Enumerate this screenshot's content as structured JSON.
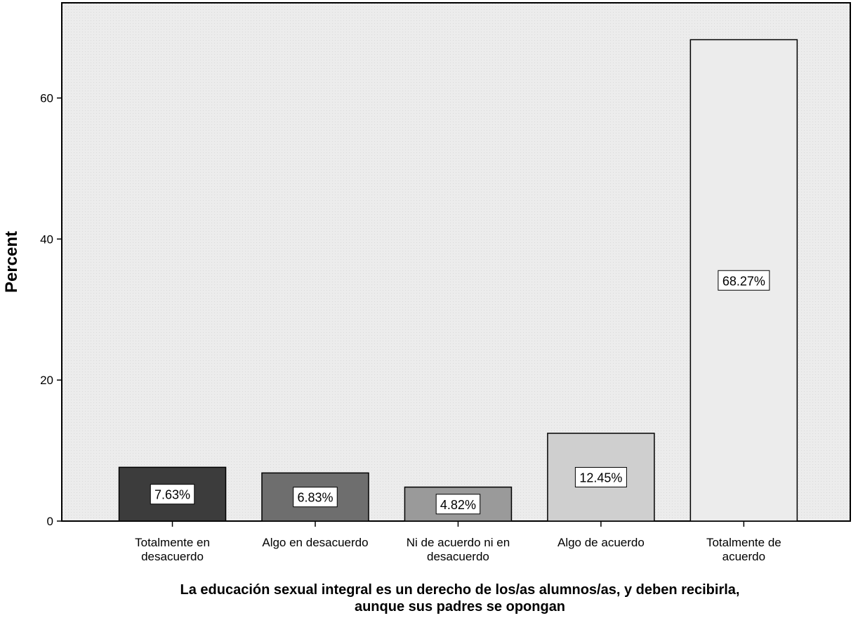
{
  "chart_data": {
    "type": "bar",
    "categories": [
      [
        "Totalmente en",
        "desacuerdo"
      ],
      [
        "Algo en desacuerdo"
      ],
      [
        "Ni de acuerdo ni en",
        "desacuerdo"
      ],
      [
        "Algo de acuerdo"
      ],
      [
        "Totalmente de",
        "acuerdo"
      ]
    ],
    "values": [
      7.63,
      6.83,
      4.82,
      12.45,
      68.27
    ],
    "data_labels": [
      "7.63%",
      "6.83%",
      "4.82%",
      "12.45%",
      "68.27%"
    ],
    "bar_colors": [
      "#3c3c3c",
      "#6e6e6e",
      "#9a9a9a",
      "#cfcfcf",
      "#ececec"
    ],
    "plot_background": "#ececec",
    "ylabel": "Percent",
    "xlabel": [
      "La educación sexual integral es un derecho de los/as alumnos/as, y deben recibirla,",
      "aunque sus padres se opongan"
    ],
    "ylim": [
      0,
      73.5
    ],
    "yticks": [
      0,
      20,
      40,
      60
    ],
    "grid": false
  }
}
